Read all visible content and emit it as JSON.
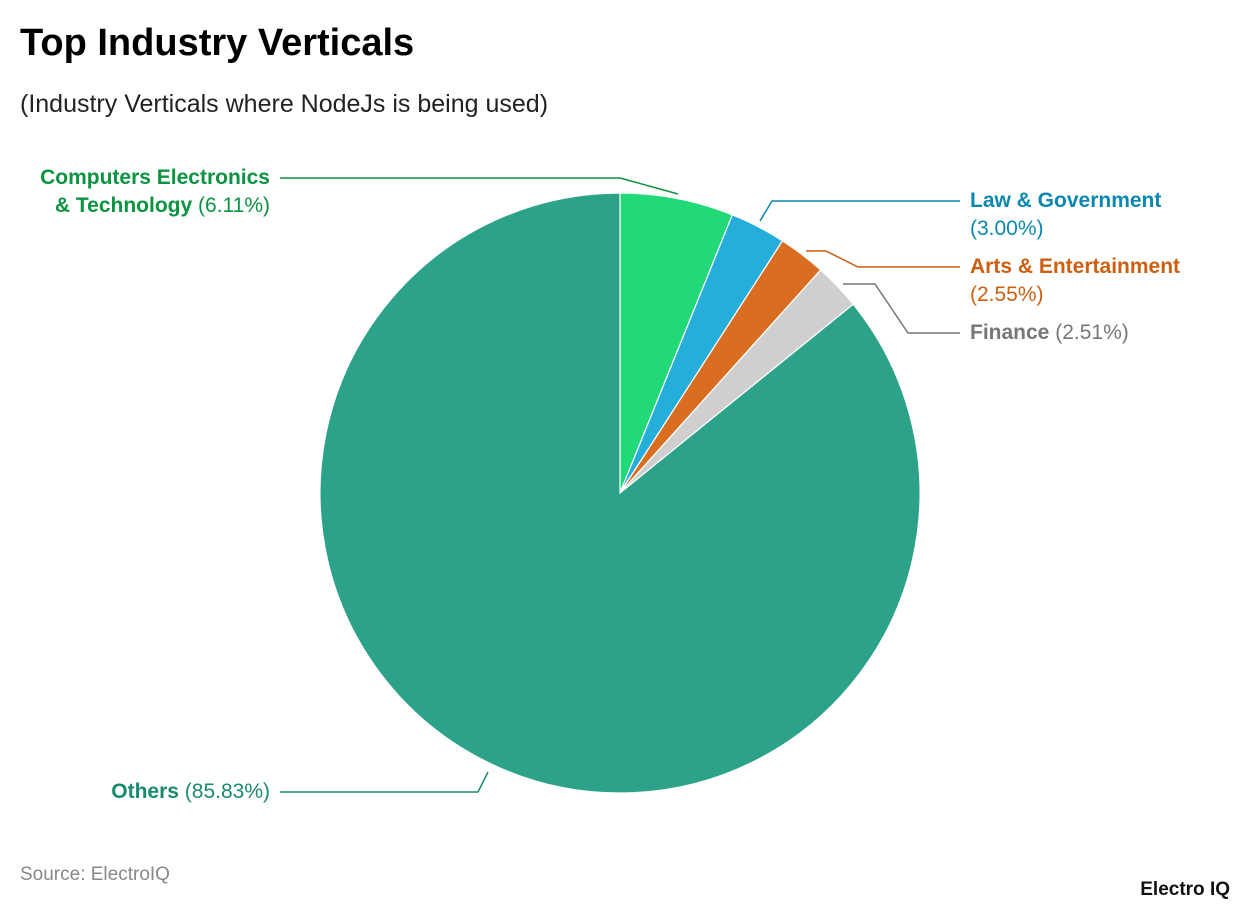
{
  "title": "Top Industry Verticals",
  "subtitle": "(Industry Verticals where NodeJs is being used)",
  "source": "Source: ElectroIQ",
  "logo": "Electro IQ",
  "chart_data": {
    "type": "pie",
    "start": "top, clockwise",
    "slices": [
      {
        "name": "Computers Electronics & Technology",
        "name_line1": "Computers Electronics",
        "name_line2": "& Technology",
        "value": 6.11,
        "label": "(6.11%)",
        "color": "#22d978",
        "text_color": "#0a9440"
      },
      {
        "name": "Law & Government",
        "value": 3.0,
        "label": "(3.00%)",
        "color": "#24aed9",
        "text_color": "#0a88b0"
      },
      {
        "name": "Arts & Entertainment",
        "value": 2.55,
        "label": "(2.55%)",
        "color": "#d96e22",
        "text_color": "#cc5f10"
      },
      {
        "name": "Finance",
        "value": 2.51,
        "label": "(2.51%)",
        "color": "#cfcfcf",
        "text_color": "#777777"
      },
      {
        "name": "Others",
        "value": 85.83,
        "label": "(85.83%)",
        "color": "#2ca388",
        "text_color": "#1a8a70"
      }
    ]
  }
}
